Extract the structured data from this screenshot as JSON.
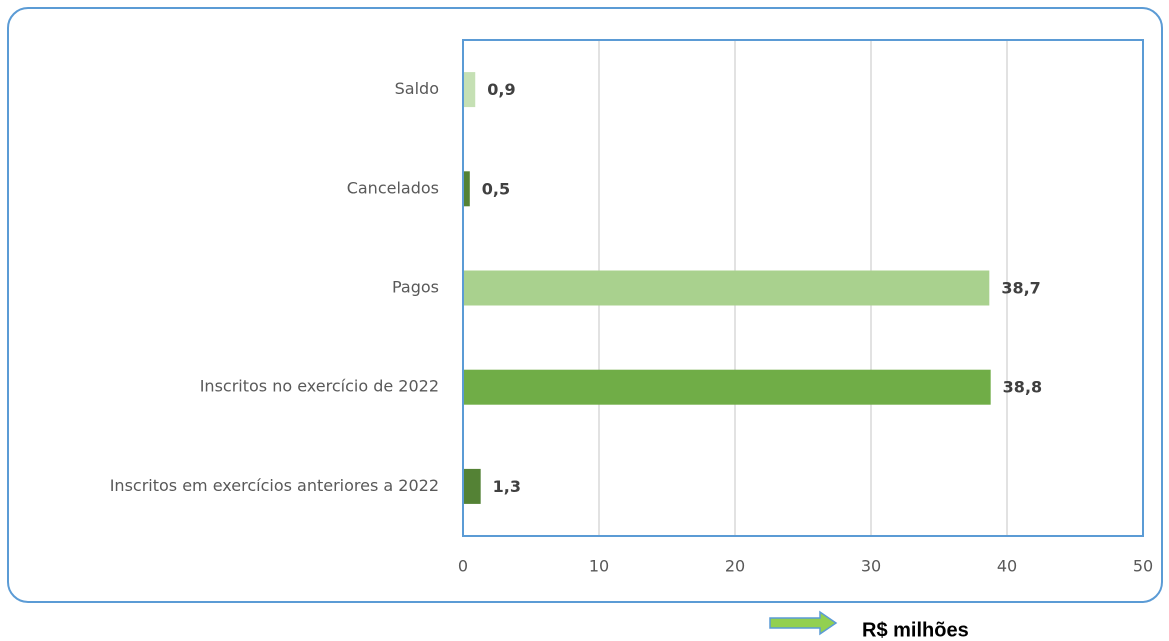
{
  "chart_data": {
    "type": "barh",
    "categories": [
      "Saldo",
      "Cancelados",
      "Pagos",
      "Inscritos no exercício de 2022",
      "Inscritos em exercícios anteriores a 2022"
    ],
    "values": [
      0.9,
      0.5,
      38.7,
      38.8,
      1.3
    ],
    "value_labels": [
      "0,9",
      "0,5",
      "38,7",
      "38,8",
      "1,3"
    ],
    "colors": [
      "#c5e0b4",
      "#548235",
      "#a9d18e",
      "#70ad47",
      "#548235"
    ],
    "xlim": [
      0,
      50
    ],
    "xticks": [
      0,
      10,
      20,
      30,
      40,
      50
    ],
    "grid": true,
    "xlabel": "R$ milhões"
  }
}
